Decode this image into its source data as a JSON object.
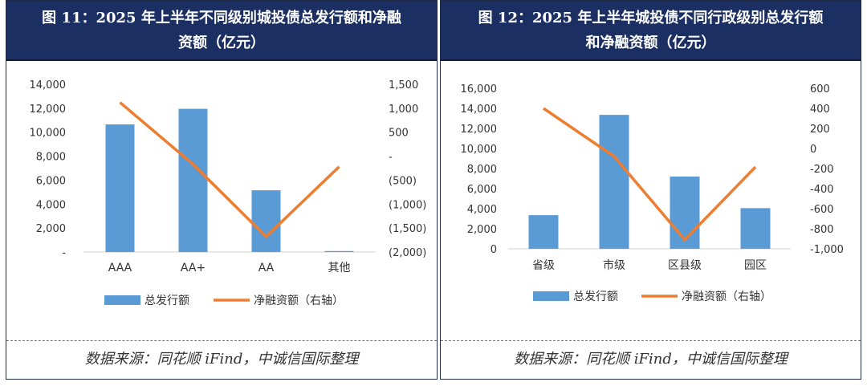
{
  "charts": [
    {
      "title_line1": "图 11：2025 年上半年不同级别城投债总发行额和净融",
      "title_line2": "资额（亿元）",
      "source": "数据来源：同花顺 iFind，中诚信国际整理",
      "chart_data": {
        "type": "bar",
        "categories": [
          "AAA",
          "AA+",
          "AA",
          "其他"
        ],
        "series": [
          {
            "name": "总发行额",
            "type": "bar",
            "axis": "left",
            "color": "#5b9bd5",
            "values": [
              10650,
              11950,
              5150,
              80
            ]
          },
          {
            "name": "净融资额（右轴）",
            "type": "line",
            "axis": "right",
            "color": "#ed7d31",
            "values": [
              1120,
              -170,
              -1680,
              -220
            ]
          }
        ],
        "ylim": [
          0,
          14000
        ],
        "y_ticks": [
          0,
          2000,
          4000,
          6000,
          8000,
          10000,
          12000,
          14000
        ],
        "y_tick_labels": [
          "-",
          "2,000",
          "4,000",
          "6,000",
          "8,000",
          "10,000",
          "12,000",
          "14,000"
        ],
        "y2lim": [
          -2000,
          1500
        ],
        "y2_ticks": [
          -2000,
          -1500,
          -1000,
          -500,
          0,
          500,
          1000,
          1500
        ],
        "y2_tick_labels": [
          "(2,000)",
          "(1,500)",
          "(1,000)",
          "(500)",
          "-",
          "500",
          "1,000",
          "1,500"
        ],
        "legend": "bottom",
        "grid": false
      }
    },
    {
      "title_line1": "图 12：2025 年上半年城投债不同行政级别总发行额",
      "title_line2": "和净融资额（亿元）",
      "source": "数据来源：同花顺 iFind，中诚信国际整理",
      "chart_data": {
        "type": "bar",
        "categories": [
          "省级",
          "市级",
          "区县级",
          "园区"
        ],
        "series": [
          {
            "name": "总发行额",
            "type": "bar",
            "axis": "left",
            "color": "#5b9bd5",
            "values": [
              3350,
              13350,
              7200,
              4050
            ]
          },
          {
            "name": "净融资额（右轴）",
            "type": "line",
            "axis": "right",
            "color": "#ed7d31",
            "values": [
              400,
              -80,
              -910,
              -185
            ]
          }
        ],
        "ylim": [
          0,
          16000
        ],
        "y_ticks": [
          0,
          2000,
          4000,
          6000,
          8000,
          10000,
          12000,
          14000,
          16000
        ],
        "y_tick_labels": [
          "0",
          "2,000",
          "4,000",
          "6,000",
          "8,000",
          "10,000",
          "12,000",
          "14,000",
          "16,000"
        ],
        "y2lim": [
          -1000,
          600
        ],
        "y2_ticks": [
          -1000,
          -800,
          -600,
          -400,
          -200,
          0,
          200,
          400,
          600
        ],
        "y2_tick_labels": [
          "-1,000",
          "-800",
          "-600",
          "-400",
          "-200",
          "0",
          "200",
          "400",
          "600"
        ],
        "legend": "bottom",
        "grid": false
      }
    }
  ]
}
